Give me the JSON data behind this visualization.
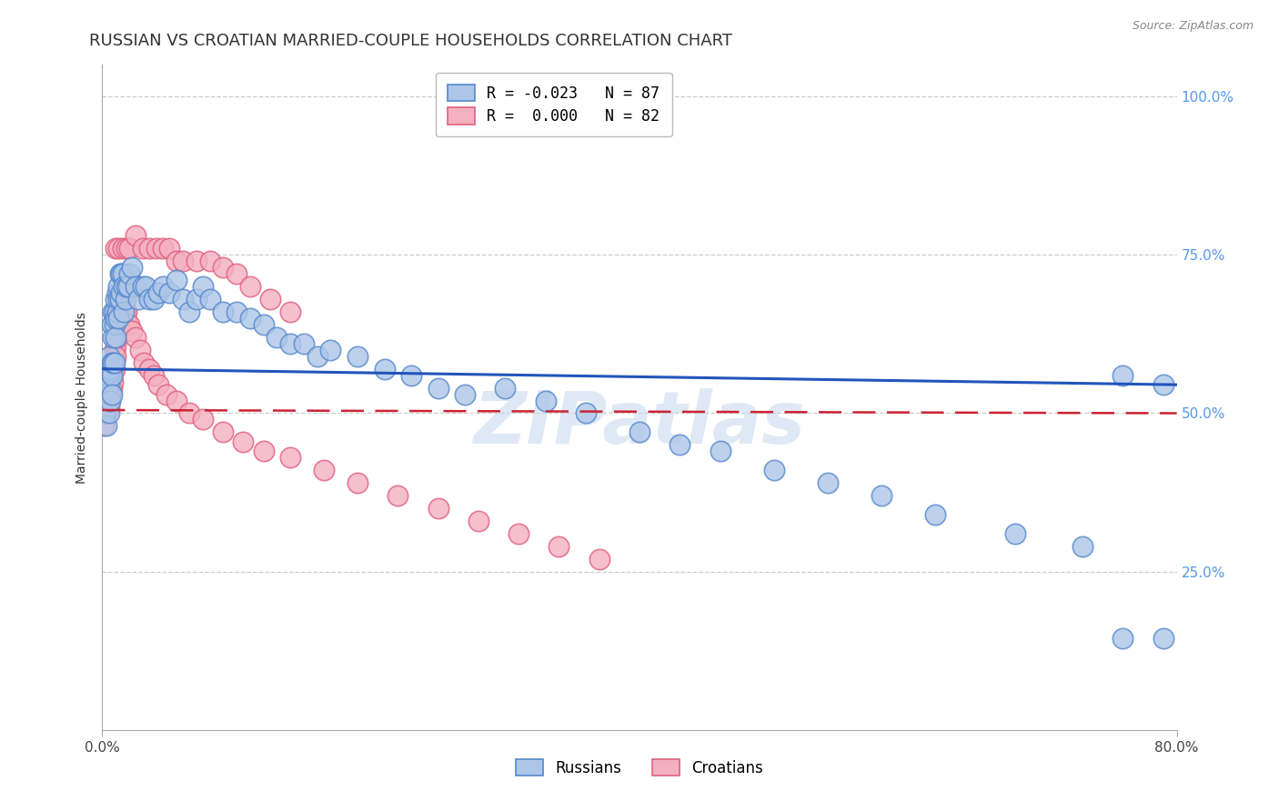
{
  "title": "RUSSIAN VS CROATIAN MARRIED-COUPLE HOUSEHOLDS CORRELATION CHART",
  "source": "Source: ZipAtlas.com",
  "ylabel": "Married-couple Households",
  "legend_russian": "R = -0.023   N = 87",
  "legend_croatian": "R =  0.000   N = 82",
  "legend_label_russian": "Russians",
  "legend_label_croatian": "Croatians",
  "russian_color": "#adc6e8",
  "croatian_color": "#f4b0c0",
  "russian_edge": "#5588cc",
  "croatian_edge": "#e06080",
  "line_russian_color": "#2255bb",
  "line_croatian_color": "#cc2233",
  "background_color": "#ffffff",
  "watermark": "ZIPatlas",
  "russian_x": [
    0.001,
    0.002,
    0.003,
    0.003,
    0.004,
    0.004,
    0.005,
    0.005,
    0.005,
    0.006,
    0.006,
    0.006,
    0.007,
    0.007,
    0.007,
    0.007,
    0.008,
    0.008,
    0.008,
    0.009,
    0.009,
    0.009,
    0.01,
    0.01,
    0.01,
    0.011,
    0.011,
    0.012,
    0.012,
    0.012,
    0.013,
    0.013,
    0.014,
    0.014,
    0.015,
    0.016,
    0.016,
    0.017,
    0.018,
    0.019,
    0.02,
    0.022,
    0.025,
    0.027,
    0.03,
    0.032,
    0.035,
    0.038,
    0.042,
    0.045,
    0.05,
    0.055,
    0.06,
    0.065,
    0.07,
    0.075,
    0.08,
    0.09,
    0.1,
    0.11,
    0.12,
    0.13,
    0.14,
    0.15,
    0.16,
    0.17,
    0.19,
    0.21,
    0.23,
    0.25,
    0.27,
    0.3,
    0.33,
    0.36,
    0.4,
    0.43,
    0.46,
    0.5,
    0.54,
    0.58,
    0.62,
    0.68,
    0.73,
    0.76,
    0.76,
    0.79,
    0.79
  ],
  "russian_y": [
    0.535,
    0.5,
    0.54,
    0.48,
    0.555,
    0.56,
    0.59,
    0.545,
    0.5,
    0.565,
    0.57,
    0.52,
    0.64,
    0.58,
    0.56,
    0.53,
    0.66,
    0.62,
    0.58,
    0.66,
    0.64,
    0.58,
    0.68,
    0.65,
    0.62,
    0.69,
    0.66,
    0.7,
    0.68,
    0.65,
    0.72,
    0.68,
    0.72,
    0.69,
    0.72,
    0.7,
    0.66,
    0.68,
    0.7,
    0.7,
    0.72,
    0.73,
    0.7,
    0.68,
    0.7,
    0.7,
    0.68,
    0.68,
    0.69,
    0.7,
    0.69,
    0.71,
    0.68,
    0.66,
    0.68,
    0.7,
    0.68,
    0.66,
    0.66,
    0.65,
    0.64,
    0.62,
    0.61,
    0.61,
    0.59,
    0.6,
    0.59,
    0.57,
    0.56,
    0.54,
    0.53,
    0.54,
    0.52,
    0.5,
    0.47,
    0.45,
    0.44,
    0.41,
    0.39,
    0.37,
    0.34,
    0.31,
    0.29,
    0.145,
    0.56,
    0.145,
    0.545
  ],
  "croatian_x": [
    0.001,
    0.002,
    0.002,
    0.003,
    0.003,
    0.004,
    0.004,
    0.004,
    0.005,
    0.005,
    0.005,
    0.006,
    0.006,
    0.006,
    0.007,
    0.007,
    0.007,
    0.008,
    0.008,
    0.008,
    0.009,
    0.009,
    0.009,
    0.01,
    0.01,
    0.01,
    0.011,
    0.011,
    0.012,
    0.012,
    0.013,
    0.013,
    0.014,
    0.015,
    0.016,
    0.017,
    0.018,
    0.019,
    0.02,
    0.022,
    0.025,
    0.028,
    0.031,
    0.035,
    0.038,
    0.042,
    0.048,
    0.055,
    0.065,
    0.075,
    0.09,
    0.105,
    0.12,
    0.14,
    0.165,
    0.19,
    0.22,
    0.25,
    0.28,
    0.31,
    0.34,
    0.37,
    0.01,
    0.012,
    0.015,
    0.018,
    0.02,
    0.025,
    0.03,
    0.035,
    0.04,
    0.045,
    0.05,
    0.055,
    0.06,
    0.07,
    0.08,
    0.09,
    0.1,
    0.11,
    0.125,
    0.14
  ],
  "croatian_y": [
    0.48,
    0.5,
    0.51,
    0.52,
    0.5,
    0.53,
    0.515,
    0.505,
    0.54,
    0.52,
    0.51,
    0.56,
    0.545,
    0.53,
    0.57,
    0.555,
    0.54,
    0.58,
    0.565,
    0.55,
    0.6,
    0.585,
    0.57,
    0.62,
    0.605,
    0.59,
    0.64,
    0.62,
    0.65,
    0.64,
    0.66,
    0.645,
    0.665,
    0.66,
    0.68,
    0.66,
    0.66,
    0.64,
    0.64,
    0.63,
    0.62,
    0.6,
    0.58,
    0.57,
    0.56,
    0.545,
    0.53,
    0.52,
    0.5,
    0.49,
    0.47,
    0.455,
    0.44,
    0.43,
    0.41,
    0.39,
    0.37,
    0.35,
    0.33,
    0.31,
    0.29,
    0.27,
    0.76,
    0.76,
    0.76,
    0.76,
    0.76,
    0.78,
    0.76,
    0.76,
    0.76,
    0.76,
    0.76,
    0.74,
    0.74,
    0.74,
    0.74,
    0.73,
    0.72,
    0.7,
    0.68,
    0.66
  ],
  "xlim": [
    0.0,
    0.8
  ],
  "ylim": [
    0.0,
    1.05
  ],
  "ytick_vals": [
    1.0,
    0.75,
    0.5,
    0.25
  ],
  "ytick_labels": [
    "100.0%",
    "75.0%",
    "50.0%",
    "25.0%"
  ],
  "xtick_vals": [
    0.0,
    0.8
  ],
  "xtick_labels": [
    "0.0%",
    "80.0%"
  ],
  "title_fontsize": 13,
  "axis_fontsize": 10,
  "tick_fontsize": 11,
  "right_tick_color": "#5599ee"
}
